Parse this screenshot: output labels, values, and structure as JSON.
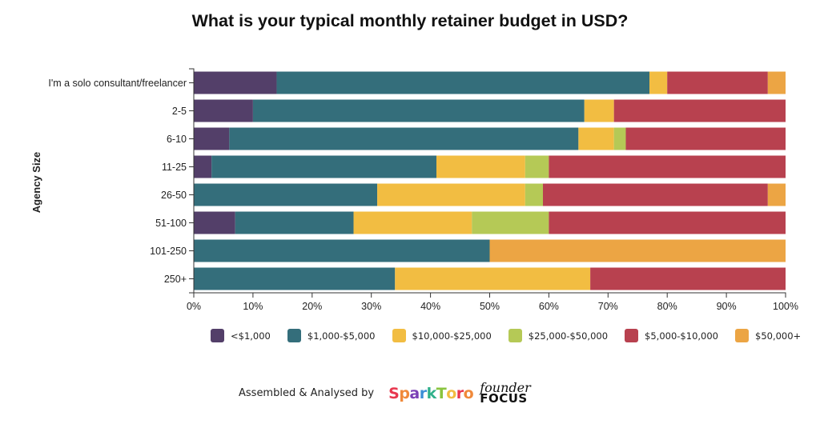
{
  "chart_data": {
    "type": "bar",
    "orientation": "horizontal",
    "stacked": true,
    "normalized": true,
    "title": "What is your typical monthly retainer budget in USD?",
    "ylabel": "Agency Size",
    "xlabel": "",
    "xlim": [
      0,
      100
    ],
    "xticks": [
      "0%",
      "10%",
      "20%",
      "30%",
      "40%",
      "50%",
      "60%",
      "70%",
      "80%",
      "90%",
      "100%"
    ],
    "legend_position": "bottom",
    "categories": [
      "I'm a solo consultant/freelancer",
      "2-5",
      "6-10",
      "11-25",
      "26-50",
      "51-100",
      "101-250",
      "250+"
    ],
    "series": [
      {
        "name": "<$1,000",
        "color": "#533f69",
        "values": [
          14,
          10,
          6,
          3,
          0,
          7,
          0,
          0
        ]
      },
      {
        "name": "$1,000-$5,000",
        "color": "#346e7b",
        "values": [
          63,
          56,
          59,
          38,
          31,
          20,
          50,
          34
        ]
      },
      {
        "name": "$10,000-$25,000",
        "color": "#f2bd42",
        "values": [
          3,
          5,
          6,
          15,
          25,
          20,
          0,
          33
        ]
      },
      {
        "name": "$25,000-$50,000",
        "color": "#b5c956",
        "values": [
          0,
          0,
          2,
          4,
          3,
          13,
          0,
          0
        ]
      },
      {
        "name": "$5,000-$10,000",
        "color": "#b8414f",
        "values": [
          17,
          29,
          27,
          40,
          38,
          40,
          0,
          33
        ]
      },
      {
        "name": "$50,000+",
        "color": "#eca544",
        "values": [
          3,
          0,
          0,
          0,
          3,
          0,
          50,
          0
        ]
      }
    ]
  },
  "footer": {
    "text": "Assembled & Analysed by",
    "logo1": "SparkToro",
    "logo2_top": "founder",
    "logo2_bottom": "FOCUS"
  }
}
